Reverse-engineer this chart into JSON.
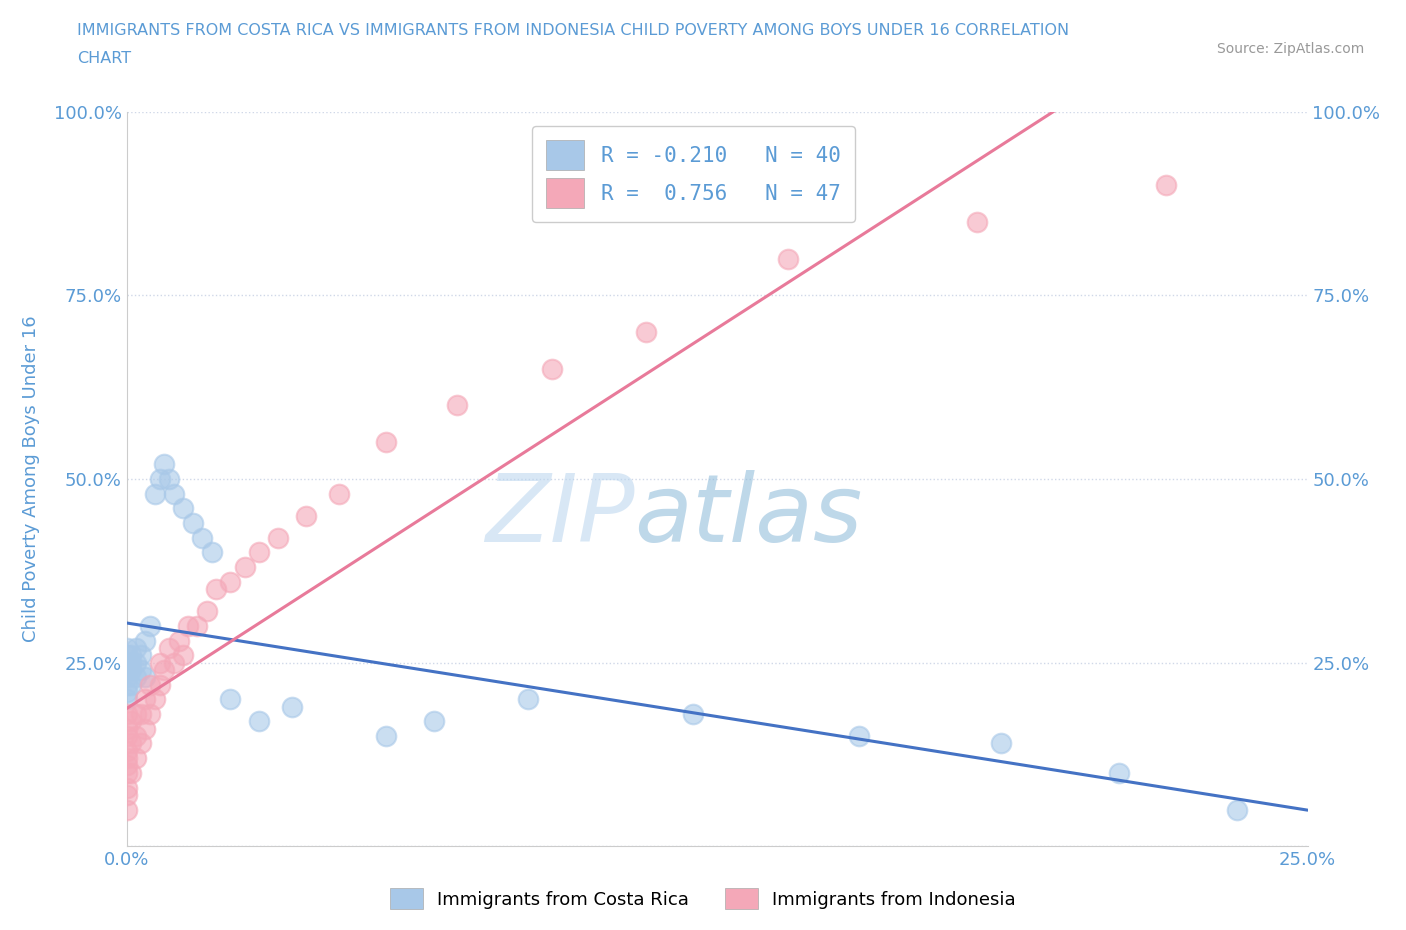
{
  "title_line1": "IMMIGRANTS FROM COSTA RICA VS IMMIGRANTS FROM INDONESIA CHILD POVERTY AMONG BOYS UNDER 16 CORRELATION",
  "title_line2": "CHART",
  "source_text": "Source: ZipAtlas.com",
  "ylabel": "Child Poverty Among Boys Under 16",
  "xlim": [
    0.0,
    0.25
  ],
  "ylim": [
    0.0,
    1.0
  ],
  "yticks": [
    0.0,
    0.25,
    0.5,
    0.75,
    1.0
  ],
  "ytick_labels_left": [
    "",
    "25.0%",
    "50.0%",
    "75.0%",
    "100.0%"
  ],
  "ytick_labels_right": [
    "",
    "25.0%",
    "50.0%",
    "75.0%",
    "100.0%"
  ],
  "xtick_positions": [
    0.0,
    0.25
  ],
  "xtick_labels": [
    "0.0%",
    "25.0%"
  ],
  "watermark_zip": "ZIP",
  "watermark_atlas": "atlas",
  "costa_rica_color": "#a8c8e8",
  "indonesia_color": "#f4a8b8",
  "costa_rica_line_color": "#4472c4",
  "indonesia_line_color": "#e87a9a",
  "R_costa_rica": -0.21,
  "N_costa_rica": 40,
  "R_indonesia": 0.756,
  "N_indonesia": 47,
  "legend_label_costa_rica": "Immigrants from Costa Rica",
  "legend_label_indonesia": "Immigrants from Indonesia",
  "background_color": "#ffffff",
  "grid_color": "#d0d8e8",
  "title_color": "#5b9bd5",
  "axis_label_color": "#5b9bd5",
  "tick_label_color": "#5b9bd5",
  "legend_text_color": "#404040",
  "legend_RN_color": "#5b9bd5",
  "costa_rica_scatter_x": [
    0.0,
    0.0,
    0.0,
    0.0,
    0.0,
    0.0,
    0.0,
    0.0,
    0.001,
    0.001,
    0.001,
    0.001,
    0.002,
    0.002,
    0.002,
    0.003,
    0.003,
    0.004,
    0.004,
    0.005,
    0.006,
    0.007,
    0.008,
    0.009,
    0.01,
    0.012,
    0.014,
    0.016,
    0.018,
    0.022,
    0.028,
    0.035,
    0.055,
    0.065,
    0.085,
    0.12,
    0.155,
    0.185,
    0.21,
    0.235
  ],
  "costa_rica_scatter_y": [
    0.2,
    0.21,
    0.22,
    0.23,
    0.24,
    0.25,
    0.26,
    0.27,
    0.22,
    0.24,
    0.25,
    0.26,
    0.23,
    0.25,
    0.27,
    0.24,
    0.26,
    0.23,
    0.28,
    0.3,
    0.48,
    0.5,
    0.52,
    0.5,
    0.48,
    0.46,
    0.44,
    0.42,
    0.4,
    0.2,
    0.17,
    0.19,
    0.15,
    0.17,
    0.2,
    0.18,
    0.15,
    0.14,
    0.1,
    0.05
  ],
  "indonesia_scatter_x": [
    0.0,
    0.0,
    0.0,
    0.0,
    0.0,
    0.0,
    0.0,
    0.0,
    0.0,
    0.0,
    0.001,
    0.001,
    0.001,
    0.002,
    0.002,
    0.002,
    0.003,
    0.003,
    0.004,
    0.004,
    0.005,
    0.005,
    0.006,
    0.007,
    0.007,
    0.008,
    0.009,
    0.01,
    0.011,
    0.012,
    0.013,
    0.015,
    0.017,
    0.019,
    0.022,
    0.025,
    0.028,
    0.032,
    0.038,
    0.045,
    0.055,
    0.07,
    0.09,
    0.11,
    0.14,
    0.18,
    0.22
  ],
  "indonesia_scatter_y": [
    0.05,
    0.07,
    0.08,
    0.1,
    0.11,
    0.12,
    0.13,
    0.15,
    0.16,
    0.18,
    0.1,
    0.14,
    0.17,
    0.12,
    0.15,
    0.18,
    0.14,
    0.18,
    0.16,
    0.2,
    0.18,
    0.22,
    0.2,
    0.22,
    0.25,
    0.24,
    0.27,
    0.25,
    0.28,
    0.26,
    0.3,
    0.3,
    0.32,
    0.35,
    0.36,
    0.38,
    0.4,
    0.42,
    0.45,
    0.48,
    0.55,
    0.6,
    0.65,
    0.7,
    0.8,
    0.85,
    0.9
  ]
}
